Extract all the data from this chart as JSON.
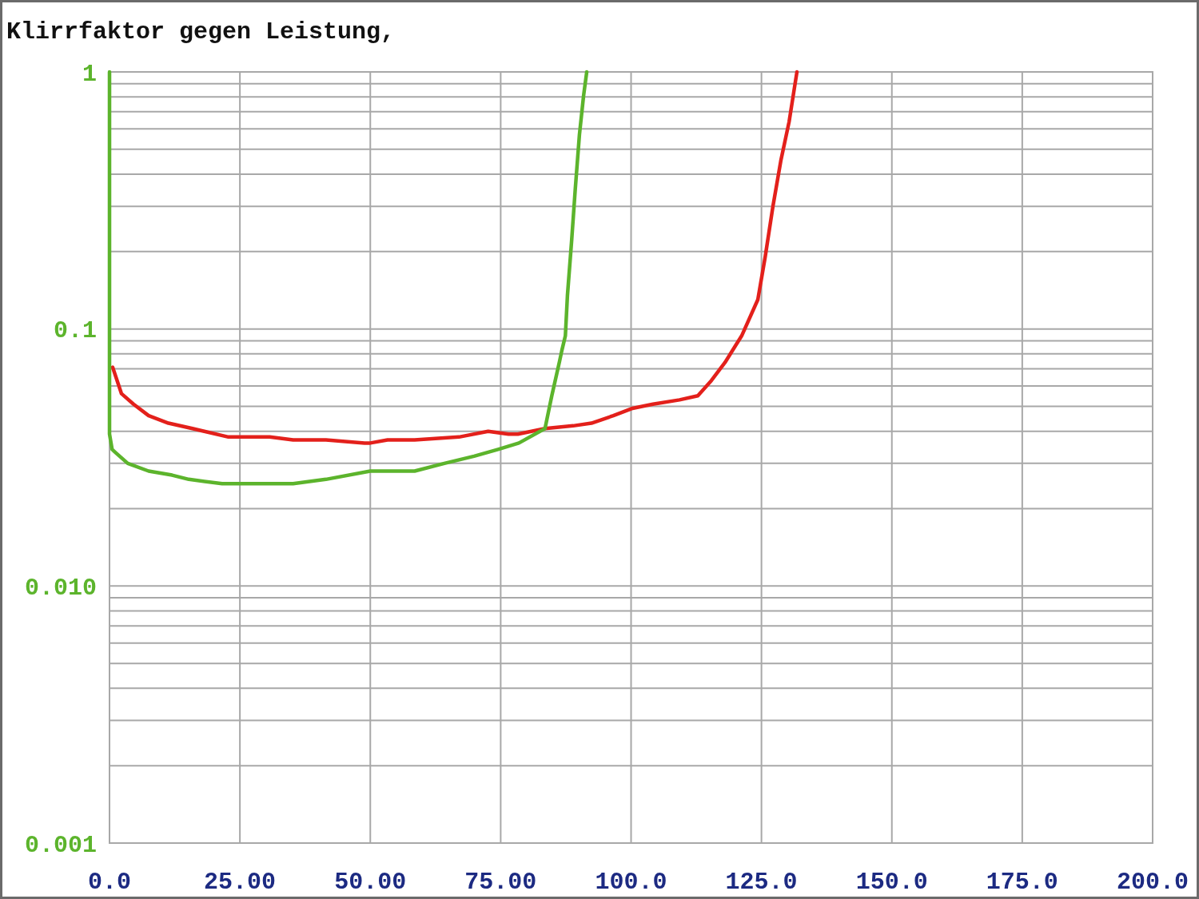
{
  "chart_data": {
    "type": "line",
    "title": "Klirrfaktor gegen Leistung,",
    "xlim": [
      0,
      200
    ],
    "xticks": [
      {
        "value": 0,
        "label": "0.0"
      },
      {
        "value": 25,
        "label": "25.00"
      },
      {
        "value": 50,
        "label": "50.00"
      },
      {
        "value": 75,
        "label": "75.00"
      },
      {
        "value": 100,
        "label": "100.0"
      },
      {
        "value": 125,
        "label": "125.0"
      },
      {
        "value": 150,
        "label": "150.0"
      },
      {
        "value": 175,
        "label": "175.0"
      },
      {
        "value": 200,
        "label": "200.0"
      }
    ],
    "ylim": [
      0.001,
      1
    ],
    "log": "y",
    "yticks": [
      0.001,
      {
        "value": 0.002,
        "label": null
      },
      {
        "value": 0.003,
        "label": null
      },
      {
        "value": 0.004,
        "label": null
      },
      {
        "value": 0.005,
        "label": null
      },
      {
        "value": 0.006,
        "label": null
      },
      {
        "value": 0.007,
        "label": null
      },
      {
        "value": 0.008,
        "label": null
      },
      {
        "value": 0.009,
        "label": null
      },
      {
        "value": 0.01,
        "label": "0.010"
      },
      {
        "value": 0.02,
        "label": null
      },
      {
        "value": 0.03,
        "label": null
      },
      {
        "value": 0.04,
        "label": null
      },
      {
        "value": 0.05,
        "label": null
      },
      {
        "value": 0.06,
        "label": null
      },
      {
        "value": 0.07,
        "label": null
      },
      {
        "value": 0.08,
        "label": null
      },
      {
        "value": 0.09,
        "label": null
      },
      0.1,
      {
        "value": 0.2,
        "label": null
      },
      {
        "value": 0.3,
        "label": null
      },
      {
        "value": 0.4,
        "label": null
      },
      {
        "value": 0.5,
        "label": null
      },
      {
        "value": 0.6,
        "label": null
      },
      {
        "value": 0.7,
        "label": null
      },
      {
        "value": 0.8,
        "label": null
      },
      {
        "value": 0.9,
        "label": null
      },
      1
    ],
    "grid": true,
    "line_style": "solid",
    "series": [
      {
        "color": "#e3201b",
        "x": [
          0.6,
          2.3,
          4.6,
          7.5,
          11.3,
          15.9,
          22.8,
          30.7,
          35.2,
          41.5,
          48.9,
          50.0,
          53.3,
          58.5,
          67.0,
          72.6,
          76.5,
          78.3,
          83.5,
          88.9,
          92.4,
          96.6,
          100.1,
          104.2,
          109.3,
          112.8,
          115.4,
          118.0,
          120.0,
          121.2,
          124.3,
          125.7,
          127.2,
          128.7,
          130.3,
          131.8
        ],
        "values": [
          0.071,
          0.056,
          0.051,
          0.046,
          0.043,
          0.041,
          0.038,
          0.038,
          0.037,
          0.037,
          0.036,
          0.036,
          0.037,
          0.037,
          0.038,
          0.04,
          0.039,
          0.039,
          0.041,
          0.042,
          0.043,
          0.046,
          0.049,
          0.051,
          0.053,
          0.055,
          0.063,
          0.074,
          0.086,
          0.094,
          0.13,
          0.19,
          0.3,
          0.45,
          0.64,
          1
        ]
      },
      {
        "color": "#5cb42c",
        "x": [
          0,
          0,
          0.5,
          1.2,
          3.5,
          7.5,
          12.0,
          15.2,
          21.6,
          27.3,
          35.2,
          41.5,
          50.0,
          58.5,
          64.2,
          69.9,
          74.5,
          78.5,
          83.5,
          84.8,
          86.3,
          86.7,
          87.4,
          87.8,
          88.6,
          89.3,
          90.1,
          90.9,
          91.5
        ],
        "values": [
          1,
          0.039,
          0.034,
          0.033,
          0.03,
          0.028,
          0.027,
          0.026,
          0.025,
          0.025,
          0.025,
          0.026,
          0.028,
          0.028,
          0.03,
          0.032,
          0.034,
          0.036,
          0.041,
          0.055,
          0.075,
          0.082,
          0.094,
          0.135,
          0.22,
          0.35,
          0.57,
          0.81,
          1
        ]
      }
    ]
  }
}
